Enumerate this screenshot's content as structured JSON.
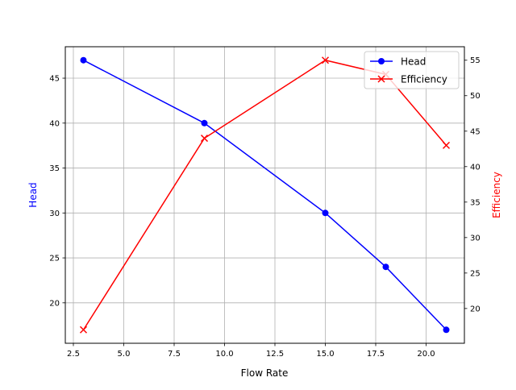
{
  "chart_data": {
    "type": "line",
    "title": "",
    "xlabel": "Flow Rate",
    "ylabel": "Head",
    "y2label": "Efficiency",
    "x": [
      3,
      9,
      15,
      18,
      21
    ],
    "series": [
      {
        "name": "Head",
        "axis": "left",
        "color": "#0000ff",
        "marker": "circle",
        "values": [
          47,
          40,
          30,
          24,
          17
        ]
      },
      {
        "name": "Efficiency",
        "axis": "right",
        "color": "#ff0000",
        "marker": "x",
        "values": [
          17,
          44,
          55,
          53,
          43
        ]
      }
    ],
    "xlim": [
      2.1,
      21.9
    ],
    "ylim": [
      15.5,
      48.5
    ],
    "y2lim": [
      15.1,
      56.9
    ],
    "xticks": [
      "2.5",
      "5.0",
      "7.5",
      "10.0",
      "12.5",
      "15.0",
      "17.5",
      "20.0"
    ],
    "yticks": [
      "20",
      "25",
      "30",
      "35",
      "40",
      "45"
    ],
    "y2ticks": [
      "20",
      "25",
      "30",
      "35",
      "40",
      "45",
      "50",
      "55"
    ],
    "grid": true,
    "legend_position": "upper right"
  }
}
